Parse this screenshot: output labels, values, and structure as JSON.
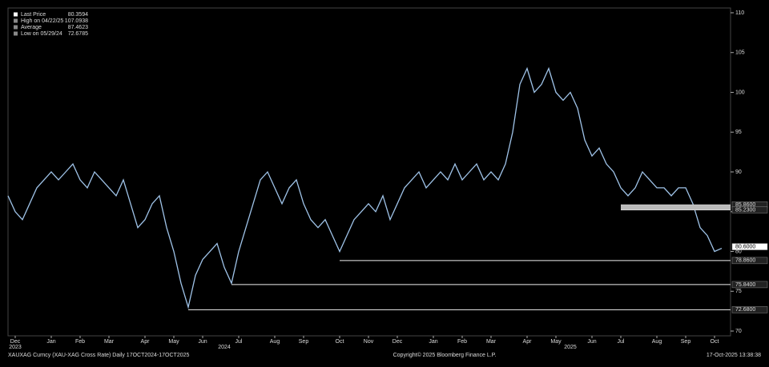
{
  "chart_data": {
    "type": "line",
    "legend": [
      {
        "label": "Last Price",
        "value": "80.3594"
      },
      {
        "label": "High on 04/22/25",
        "value": "107.0938"
      },
      {
        "label": "Average",
        "value": "87.4623"
      },
      {
        "label": "Low on 05/29/24",
        "value": "72.6785"
      }
    ],
    "footer_left": "XAUXAG Curncy (XAU-XAG Cross Rate) Daily 17OCT2024-17OCT2025",
    "footer_center": "Copyright© 2025 Bloomberg Finance L.P.",
    "footer_right": "17-Oct-2025 13:38:38",
    "categories": [
      null,
      "Dec",
      null,
      null,
      null,
      null,
      "Jan",
      null,
      null,
      null,
      "Feb",
      null,
      null,
      null,
      "Mar",
      null,
      null,
      null,
      null,
      "Apr",
      null,
      null,
      null,
      "May",
      null,
      null,
      null,
      "Jun",
      null,
      null,
      null,
      null,
      "Jul",
      null,
      null,
      null,
      null,
      "Aug",
      null,
      null,
      null,
      "Sep",
      null,
      null,
      null,
      null,
      "Oct",
      null,
      null,
      null,
      "Nov",
      null,
      null,
      null,
      "Dec",
      null,
      null,
      null,
      null,
      "Jan",
      null,
      null,
      null,
      "Feb",
      null,
      null,
      null,
      "Mar",
      null,
      null,
      null,
      null,
      "Apr",
      null,
      null,
      null,
      "May",
      null,
      null,
      null,
      null,
      "Jun",
      null,
      null,
      null,
      "Jul",
      null,
      null,
      null,
      null,
      "Aug",
      null,
      null,
      null,
      "Sep",
      null,
      null,
      null,
      "Oct",
      null
    ],
    "year_labels": [
      {
        "label": "2023",
        "index": 1
      },
      {
        "label": "2024",
        "index": 30
      },
      {
        "label": "2025",
        "index": 78
      }
    ],
    "series": [
      {
        "color": "#9fc3e8",
        "values": [
          87,
          85,
          84,
          86,
          88,
          89,
          90,
          89,
          90,
          91,
          89,
          88,
          90,
          89,
          88,
          87,
          89,
          86,
          83,
          84,
          86,
          87,
          83,
          80,
          76,
          73,
          77,
          79,
          80,
          81,
          78,
          76,
          80,
          83,
          86,
          89,
          90,
          88,
          86,
          88,
          89,
          86,
          84,
          83,
          84,
          82,
          80,
          82,
          84,
          85,
          86,
          85,
          87,
          84,
          86,
          88,
          89,
          90,
          88,
          89,
          90,
          89,
          91,
          89,
          90,
          91,
          89,
          90,
          89,
          91,
          95,
          101,
          103,
          100,
          101,
          103,
          100,
          99,
          100,
          98,
          94,
          92,
          93,
          91,
          90,
          88,
          87,
          88,
          90,
          89,
          88,
          88,
          87,
          88,
          88,
          86,
          83,
          82,
          80,
          80.4
        ]
      }
    ],
    "levels": [
      {
        "value": 85.86,
        "label": "85.8600",
        "from_index": 85
      },
      {
        "value": 85.23,
        "label": "85.2300",
        "from_index": 85
      },
      {
        "value": 80.6,
        "label": "80.6000"
      },
      {
        "value": 78.86,
        "label": "78.8600",
        "from_index": 46
      },
      {
        "value": 75.84,
        "label": "75.8400",
        "from_index": 31
      },
      {
        "value": 72.68,
        "label": "72.6800",
        "from_index": 25
      }
    ],
    "ylim": [
      69.4,
      110.6
    ],
    "yticks": [
      70,
      75,
      80,
      85,
      90,
      95,
      100,
      105,
      110
    ]
  }
}
